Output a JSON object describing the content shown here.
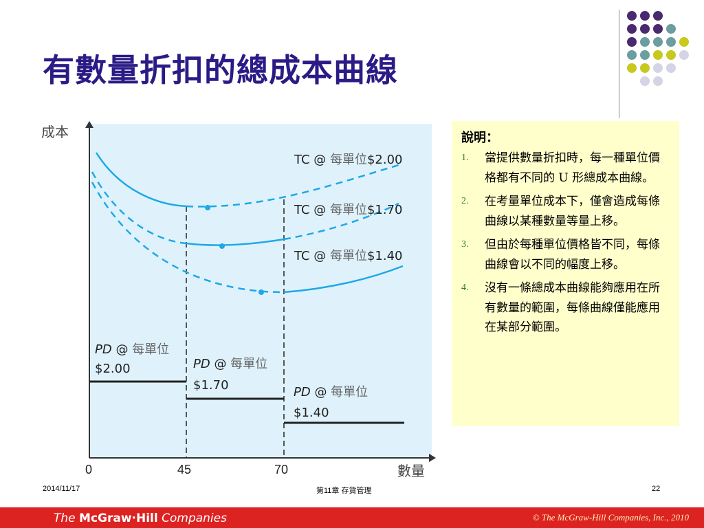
{
  "title": "有數量折扣的總成本曲線",
  "colors": {
    "title": "#2a1b86",
    "purple": "#4a2a6e",
    "teal": "#6b9ea0",
    "olive": "#c8c81e",
    "lavender": "#d4d4e6",
    "curve": "#1ea8e8",
    "plot_bg": "#dff2fb",
    "explain_bg": "#ffffcc",
    "bar": "#dd2222"
  },
  "chart_data": {
    "type": "line",
    "ylabel": "成本",
    "xlabel": "數量",
    "x_ticks": [
      "0",
      "45",
      "70"
    ],
    "tc_labels": [
      {
        "prefix": "TC @ ",
        "unit": "每單位",
        "price": "$2.00"
      },
      {
        "prefix": "TC @ ",
        "unit": "每單位",
        "price": "$1.70"
      },
      {
        "prefix": "TC @ ",
        "unit": "每單位",
        "price": "$1.40"
      }
    ],
    "pd_labels": [
      {
        "prefix": "PD",
        "at": " @ ",
        "unit": "每單位",
        "price": "$2.00"
      },
      {
        "prefix": "PD",
        "at": " @ ",
        "unit": "每單位",
        "price": "$1.70"
      },
      {
        "prefix": "PD",
        "at": " @ ",
        "unit": "每單位",
        "price": "$1.40"
      }
    ],
    "price_steps": [
      {
        "from": 0,
        "to": 45,
        "price": 2.0
      },
      {
        "from": 45,
        "to": 70,
        "price": 1.7
      },
      {
        "from": 70,
        "to": null,
        "price": 1.4
      }
    ],
    "breakpoints": [
      45,
      70
    ],
    "grid": false
  },
  "explanation": {
    "heading": "說明：",
    "items": [
      {
        "num": "1.",
        "text": "當提供數量折扣時，每一種單位價格都有不同的 U 形總成本曲線。"
      },
      {
        "num": "2.",
        "text": "在考量單位成本下，僅會造成每條曲線以某種數量等量上移。"
      },
      {
        "num": "3.",
        "text": "但由於每種單位價格皆不同，每條曲線會以不同的幅度上移。"
      },
      {
        "num": "4.",
        "text": "沒有一條總成本曲線能夠應用在所有數量的範圍，每條曲線僅能應用在某部分範圍。"
      }
    ]
  },
  "footer": {
    "date": "2014/11/17",
    "chapter": "第11章 存貨管理",
    "page": "22"
  },
  "bottom_bar": {
    "brand_the": "The ",
    "brand_name": "McGraw·Hill",
    "brand_companies": " Companies",
    "copyright": "© The McGraw-Hill Companies, Inc., 2010"
  }
}
